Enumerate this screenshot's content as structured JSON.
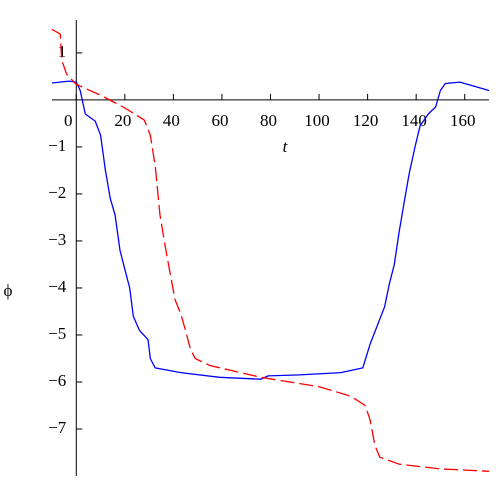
{
  "chart_data": {
    "type": "line",
    "x_label": "t",
    "y_label": "ϕ",
    "xlim": [
      -10,
      170
    ],
    "ylim": [
      -8,
      1.7
    ],
    "xticks": [
      0,
      20,
      40,
      60,
      80,
      100,
      120,
      140,
      160
    ],
    "yticks": [
      1,
      {
        "value": -1,
        "label": "−1"
      },
      {
        "value": -2,
        "label": "−2"
      },
      {
        "value": -3,
        "label": "−3"
      },
      {
        "value": -4,
        "label": "−4"
      },
      {
        "value": -5,
        "label": "−5"
      },
      {
        "value": -6,
        "label": "−6"
      },
      {
        "value": -7,
        "label": "−7"
      }
    ],
    "series": [
      {
        "color": "#0000ff",
        "dash": false,
        "x": [
          -10,
          -3,
          0,
          1.6,
          3.7,
          7.8,
          10,
          12,
          14,
          16,
          18,
          20,
          22,
          23.5,
          26,
          29.6,
          30.5,
          32.5,
          43,
          59,
          76,
          79,
          92,
          109,
          118,
          121,
          124,
          127,
          129,
          131,
          133,
          135,
          137,
          139.5,
          141.6,
          145,
          148,
          150,
          152,
          158,
          170
        ],
        "values": [
          0.36,
          0.4,
          0.38,
          0.2,
          -0.3,
          -0.45,
          -0.75,
          -1.5,
          -2.1,
          -2.45,
          -3.2,
          -3.6,
          -4.0,
          -4.6,
          -4.9,
          -5.1,
          -5.5,
          -5.7,
          -5.8,
          -5.9,
          -5.94,
          -5.87,
          -5.85,
          -5.8,
          -5.7,
          -5.2,
          -4.8,
          -4.4,
          -3.9,
          -3.5,
          -2.8,
          -2.2,
          -1.6,
          -1.0,
          -0.55,
          -0.3,
          -0.15,
          0.2,
          0.35,
          0.38,
          0.2
        ]
      },
      {
        "color": "#ff0000",
        "dash": true,
        "x": [
          -10,
          -6.6,
          -6,
          -4,
          0,
          10,
          20,
          28,
          30.5,
          32.5,
          34.5,
          36.6,
          38.7,
          40.7,
          43,
          45,
          47,
          49,
          55,
          76,
          100,
          113,
          119,
          121,
          123,
          125,
          133,
          150,
          170
        ],
        "values": [
          1.5,
          1.4,
          0.85,
          0.55,
          0.33,
          0.1,
          -0.17,
          -0.43,
          -0.75,
          -1.4,
          -2.45,
          -3.1,
          -3.7,
          -4.25,
          -4.55,
          -4.9,
          -5.3,
          -5.5,
          -5.65,
          -5.9,
          -6.1,
          -6.3,
          -6.5,
          -6.8,
          -7.35,
          -7.6,
          -7.75,
          -7.85,
          -7.9
        ]
      }
    ]
  }
}
